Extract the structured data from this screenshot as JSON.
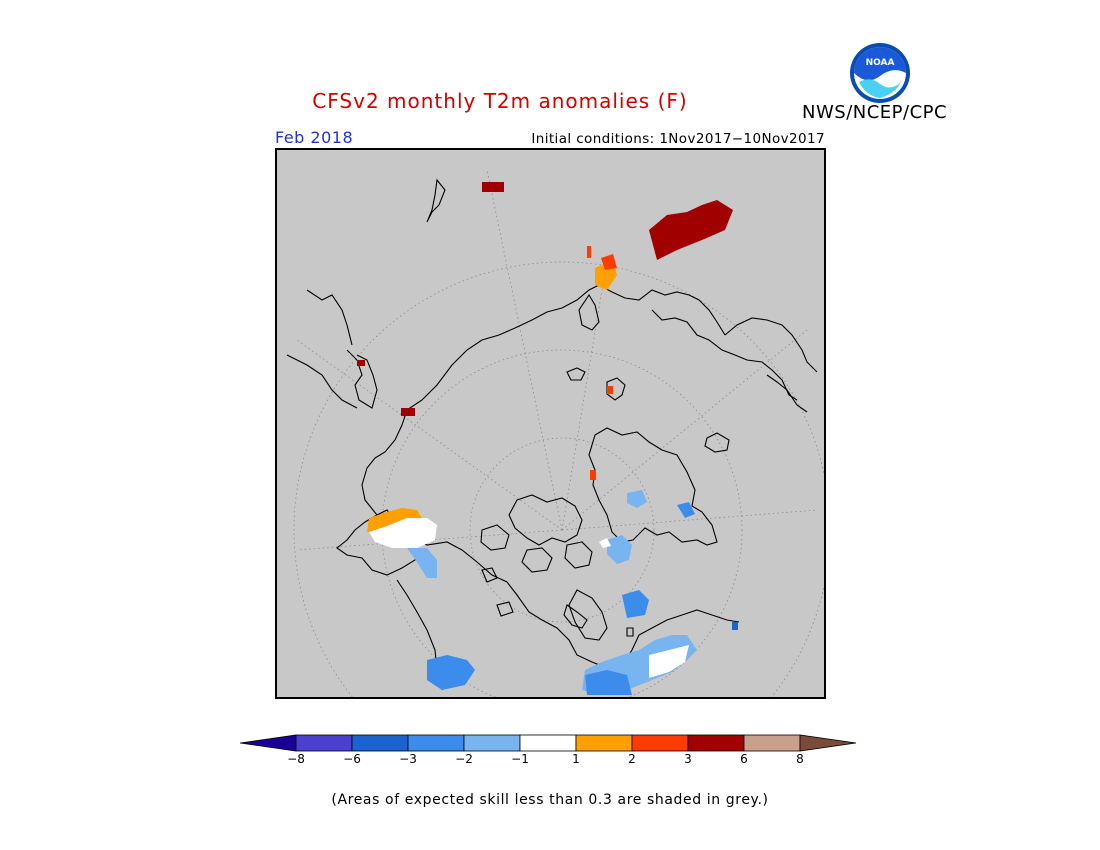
{
  "header": {
    "title": "CFSv2 monthly T2m anomalies (F)",
    "agency": "NWS/NCEP/CPC",
    "logo_text": "NOAA",
    "forecast_month": "Feb 2018",
    "initial_conditions": "Initial conditions: 1Nov2017−10Nov2017"
  },
  "legend": {
    "tick_labels": [
      "−8",
      "−6",
      "−3",
      "−2",
      "−1",
      "1",
      "2",
      "3",
      "6",
      "8"
    ],
    "colors": [
      "#1a0096",
      "#4a3fce",
      "#1a64d2",
      "#3c8ceb",
      "#78b4f0",
      "#ffffff",
      "#ffa000",
      "#ff3c00",
      "#a00000",
      "#c8a08c",
      "#7a4a3a"
    ],
    "footnote": "(Areas of expected skill less than 0.3 are shaded in grey.)"
  },
  "map": {
    "projection": "north polar stereographic",
    "background_grey": "#c8c8c8",
    "coastline_color": "#000000",
    "graticule_color": "#888888"
  }
}
